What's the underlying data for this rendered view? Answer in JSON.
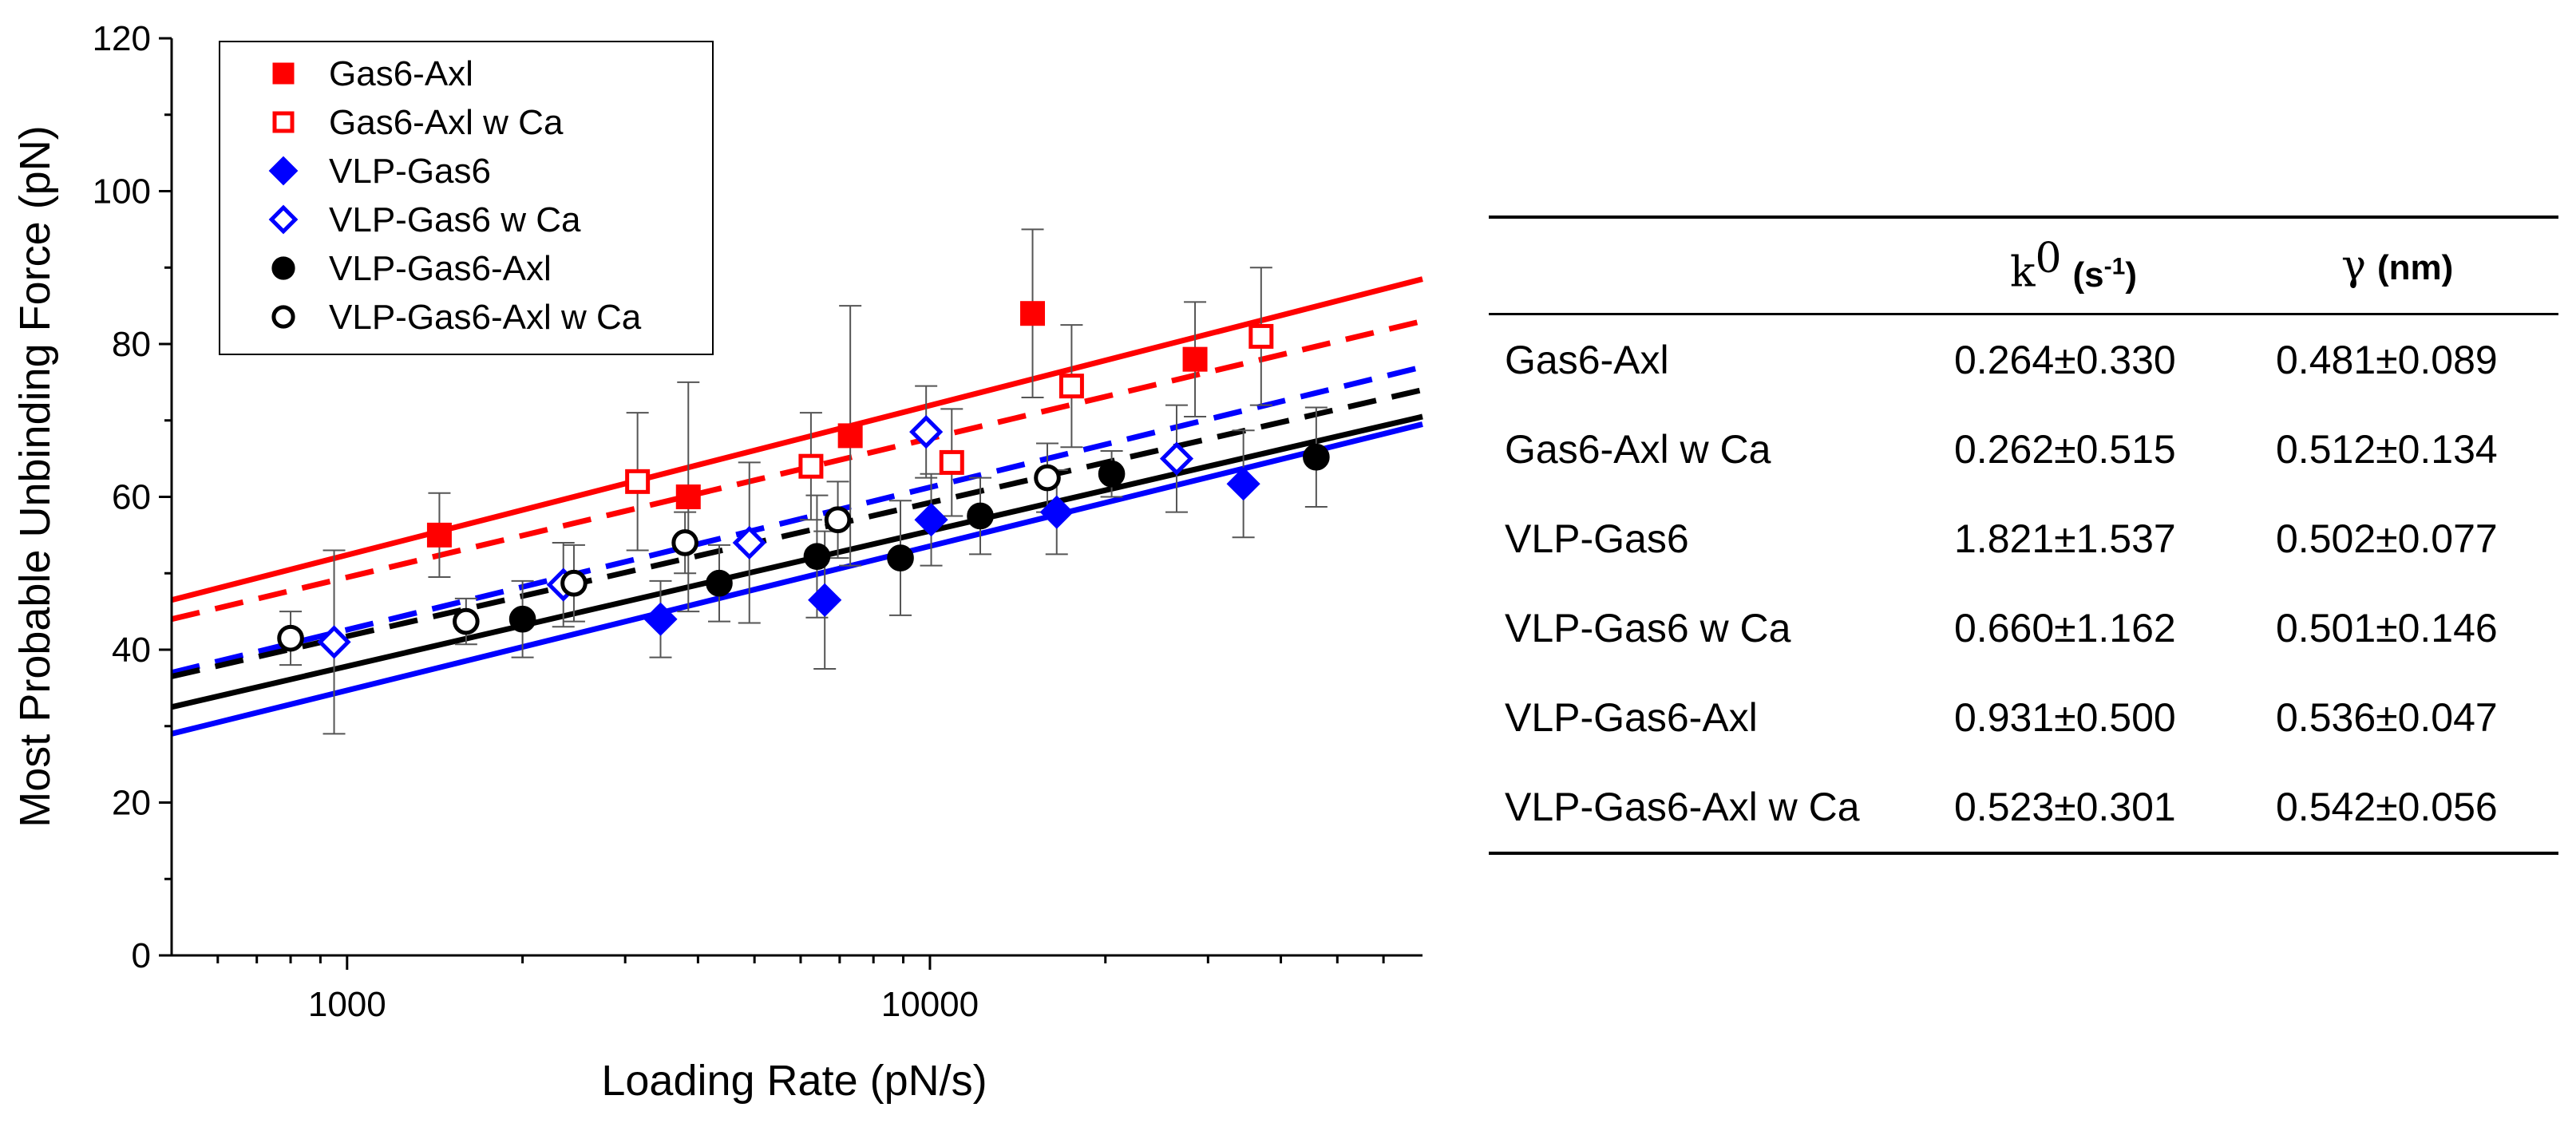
{
  "chart_data": {
    "type": "scatter",
    "xlabel": "Loading Rate (pN/s)",
    "ylabel": "Most Probable Unbinding Force (pN)",
    "xscale": "log",
    "xlim": [
      500,
      70000
    ],
    "ylim": [
      0,
      120
    ],
    "x_ticks": [
      1000,
      10000
    ],
    "x_tick_labels": [
      "1000",
      "10000"
    ],
    "y_ticks": [
      0,
      20,
      40,
      60,
      80,
      100,
      120
    ],
    "y_tick_labels": [
      "0",
      "20",
      "40",
      "60",
      "80",
      "100",
      "120"
    ],
    "grid": false,
    "legend_position": "top-left",
    "series": [
      {
        "name": "Gas6-Axl",
        "color": "#ff0000",
        "marker": "square",
        "filled": true,
        "x": [
          1440,
          3850,
          7300,
          15000,
          28500
        ],
        "y": [
          55,
          60,
          68,
          84,
          78
        ],
        "err": [
          5.5,
          15,
          17,
          11,
          7.5
        ],
        "fit": {
          "style": "solid",
          "y_start": 46.5,
          "y_end": 88.5
        }
      },
      {
        "name": "Gas6-Axl w Ca",
        "color": "#ff0000",
        "marker": "square",
        "filled": false,
        "x": [
          3150,
          6250,
          10900,
          17500,
          37000
        ],
        "y": [
          62,
          64,
          64.5,
          74.5,
          81
        ],
        "err": [
          9,
          7,
          7,
          8,
          9
        ],
        "fit": {
          "style": "dashed",
          "y_start": 44,
          "y_end": 83
        }
      },
      {
        "name": "VLP-Gas6",
        "color": "#0000ff",
        "marker": "diamond",
        "filled": true,
        "x": [
          3450,
          6600,
          10050,
          16500,
          34500
        ],
        "y": [
          44,
          46.5,
          57,
          58,
          61.7
        ],
        "err": [
          5,
          9,
          6,
          5.5,
          7
        ],
        "fit": {
          "style": "solid",
          "y_start": 29,
          "y_end": 69.5
        }
      },
      {
        "name": "VLP-Gas6 w Ca",
        "color": "#0000ff",
        "marker": "diamond",
        "filled": false,
        "x": [
          950,
          2350,
          4900,
          9850,
          26500
        ],
        "y": [
          41,
          48.5,
          54,
          68.5,
          65
        ],
        "err": [
          12,
          5.5,
          10.5,
          6,
          7
        ],
        "fit": {
          "style": "dashed",
          "y_start": 37,
          "y_end": 77
        }
      },
      {
        "name": "VLP-Gas6-Axl",
        "color": "#000000",
        "marker": "circle",
        "filled": true,
        "x": [
          2000,
          4350,
          6400,
          8900,
          12200,
          20500,
          46000
        ],
        "y": [
          44,
          48.7,
          52.2,
          52,
          57.5,
          63,
          65.2
        ],
        "err": [
          5,
          5,
          8,
          7.5,
          5,
          3,
          6.5
        ],
        "fit": {
          "style": "solid",
          "y_start": 32.5,
          "y_end": 70.5
        }
      },
      {
        "name": "VLP-Gas6-Axl w Ca",
        "color": "#000000",
        "marker": "circle",
        "filled": false,
        "x": [
          800,
          1600,
          2450,
          3800,
          6950,
          15900
        ],
        "y": [
          41.5,
          43.7,
          48.7,
          54,
          57,
          62.5
        ],
        "err": [
          3.5,
          3,
          5,
          4,
          5,
          4.5
        ],
        "fit": {
          "style": "dashed",
          "y_start": 36.5,
          "y_end": 74
        }
      }
    ]
  },
  "table": {
    "headers": {
      "col1": "",
      "k0_symbol": "k",
      "k0_sup": "0",
      "k0_unit": "(s",
      "k0_unit_sup": "-1",
      "k0_unit_close": ")",
      "gamma_symbol": "γ",
      "gamma_unit": "(nm)"
    },
    "rows": [
      {
        "name": "Gas6-Axl",
        "k0": "0.264±0.330",
        "gamma": "0.481±0.089"
      },
      {
        "name": "Gas6-Axl w Ca",
        "k0": "0.262±0.515",
        "gamma": "0.512±0.134"
      },
      {
        "name": "VLP-Gas6",
        "k0": "1.821±1.537",
        "gamma": "0.502±0.077"
      },
      {
        "name": "VLP-Gas6 w Ca",
        "k0": "0.660±1.162",
        "gamma": "0.501±0.146"
      },
      {
        "name": "VLP-Gas6-Axl",
        "k0": "0.931±0.500",
        "gamma": "0.536±0.047"
      },
      {
        "name": "VLP-Gas6-Axl w Ca",
        "k0": "0.523±0.301",
        "gamma": "0.542±0.056"
      }
    ]
  }
}
